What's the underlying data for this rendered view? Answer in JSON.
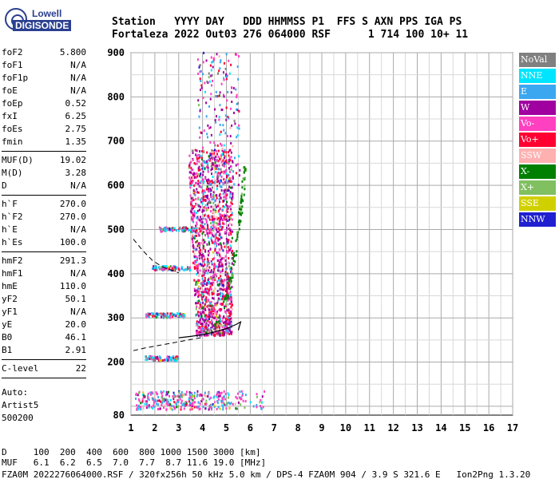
{
  "logo": {
    "line1": "Lowell",
    "line2": "DIGISONDE"
  },
  "header": {
    "line1": "Station   YYYY DAY   DDD HHMMSS P1  FFS S AXN PPS IGA PS",
    "line2": "Fortaleza 2022 Out03 276 064000 RSF      1 714 100 10+ 11"
  },
  "params": [
    [
      {
        "k": "foF2",
        "v": "5.800"
      },
      {
        "k": "foF1",
        "v": "N/A"
      },
      {
        "k": "foF1p",
        "v": "N/A"
      },
      {
        "k": "foE",
        "v": "N/A"
      },
      {
        "k": "foEp",
        "v": "0.52"
      },
      {
        "k": "fxI",
        "v": "6.25"
      },
      {
        "k": "foEs",
        "v": "2.75"
      },
      {
        "k": "fmin",
        "v": "1.35"
      }
    ],
    [
      {
        "k": "MUF(D)",
        "v": "19.02"
      },
      {
        "k": "M(D)",
        "v": "3.28"
      },
      {
        "k": "D",
        "v": "N/A"
      }
    ],
    [
      {
        "k": "h`F",
        "v": "270.0"
      },
      {
        "k": "h`F2",
        "v": "270.0"
      },
      {
        "k": "h`E",
        "v": "N/A"
      },
      {
        "k": "h`Es",
        "v": "100.0"
      }
    ],
    [
      {
        "k": "hmF2",
        "v": "291.3"
      },
      {
        "k": "hmF1",
        "v": "N/A"
      },
      {
        "k": "hmE",
        "v": "110.0"
      },
      {
        "k": "yF2",
        "v": "50.1"
      },
      {
        "k": "yF1",
        "v": "N/A"
      },
      {
        "k": "yE",
        "v": "20.0"
      },
      {
        "k": "B0",
        "v": "46.1"
      },
      {
        "k": "B1",
        "v": "2.91"
      }
    ],
    [
      {
        "k": "C-level",
        "v": "22"
      }
    ]
  ],
  "auto": {
    "l1": "Auto:",
    "l2": "Artist5",
    "l3": "500200"
  },
  "legend": [
    {
      "label": "NoVal",
      "color": "#808080"
    },
    {
      "label": "NNE",
      "color": "#00e5ff"
    },
    {
      "label": "E",
      "color": "#3ba7f0"
    },
    {
      "label": "W",
      "color": "#a000a0"
    },
    {
      "label": "Vo-",
      "color": "#ff40c0"
    },
    {
      "label": "Vo+",
      "color": "#ff0030"
    },
    {
      "label": "SSW",
      "color": "#ffb0b0"
    },
    {
      "label": "X-",
      "color": "#008000"
    },
    {
      "label": "X+",
      "color": "#80c060"
    },
    {
      "label": "SSE",
      "color": "#d0d000"
    },
    {
      "label": "NNW",
      "color": "#2020d0"
    }
  ],
  "bottom": {
    "l1": "D     100  200  400  600  800 1000 1500 3000 [km]",
    "l2": "MUF   6.1  6.2  6.5  7.0  7.7  8.7 11.6 19.0 [MHz]",
    "l3": "FZA0M_2022276064000.RSF / 320fx256h 50 kHz 5.0 km / DPS-4 FZA0M 904 / 3.9 S 321.6 E   Ion2Png 1.3.20"
  },
  "chart_data": {
    "type": "scatter",
    "xlim": [
      1,
      17
    ],
    "ylim": [
      80,
      900
    ],
    "xticks": [
      1,
      2,
      3,
      4,
      5,
      6,
      7,
      8,
      9,
      10,
      11,
      12,
      13,
      14,
      15,
      16,
      17
    ],
    "yticks": [
      80,
      200,
      300,
      400,
      500,
      600,
      700,
      800,
      900
    ],
    "grid": true,
    "profile_curve": [
      [
        3.0,
        255
      ],
      [
        3.5,
        258
      ],
      [
        4.0,
        262
      ],
      [
        4.5,
        268
      ],
      [
        5.0,
        276
      ],
      [
        5.4,
        285
      ],
      [
        5.6,
        291
      ],
      [
        5.5,
        272
      ]
    ],
    "trace_F2_dashed": [
      [
        1.1,
        226
      ],
      [
        1.6,
        232
      ],
      [
        2.2,
        238
      ],
      [
        2.8,
        244
      ],
      [
        3.2,
        248
      ],
      [
        3.6,
        252
      ],
      [
        4.0,
        256
      ]
    ],
    "trace_Es_dashed": [
      [
        1.1,
        478
      ],
      [
        1.5,
        452
      ],
      [
        1.9,
        430
      ],
      [
        2.3,
        416
      ],
      [
        2.7,
        408
      ],
      [
        3.0,
        402
      ]
    ],
    "x_ordinary_trace": [
      [
        3.5,
        262
      ],
      [
        4.0,
        270
      ],
      [
        4.5,
        280
      ],
      [
        5.0,
        292
      ],
      [
        5.3,
        305
      ],
      [
        5.5,
        330
      ],
      [
        5.7,
        380
      ],
      [
        5.8,
        440
      ],
      [
        5.85,
        520
      ],
      [
        5.9,
        600
      ],
      [
        5.95,
        640
      ]
    ],
    "point_density": "dense ionogram echoes 2.2–6.5 MHz, 250–900 km; E-region/Es echoes near 90–130 km"
  }
}
